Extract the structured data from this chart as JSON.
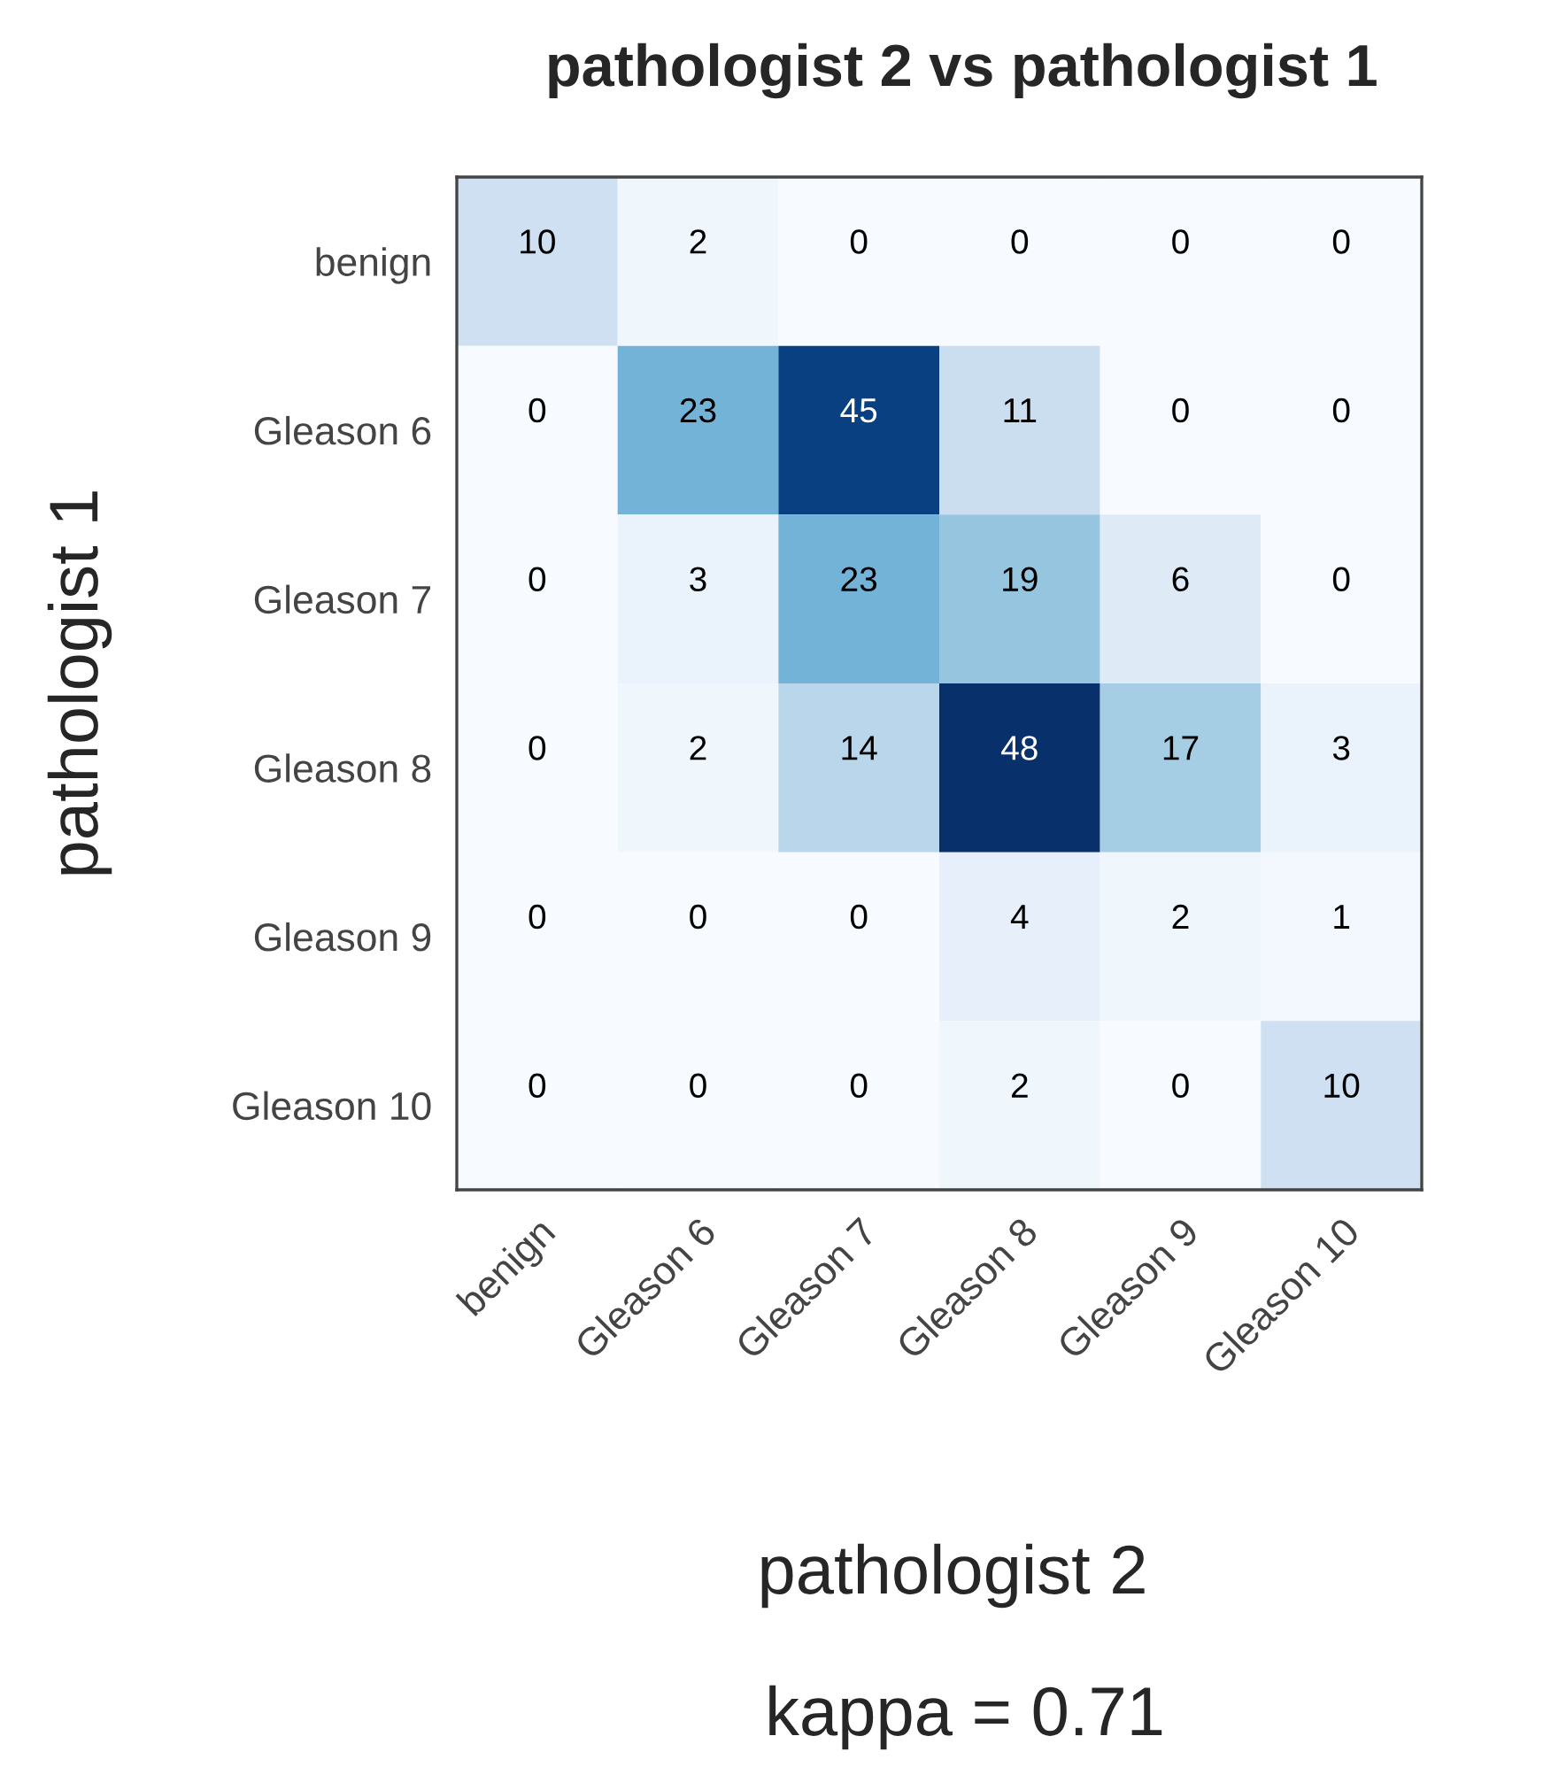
{
  "chart_data": {
    "type": "heatmap",
    "title": "pathologist 2 vs pathologist 1",
    "xlabel": "pathologist 2",
    "ylabel": "pathologist 1",
    "categories": [
      "benign",
      "Gleason 6",
      "Gleason 7",
      "Gleason 8",
      "Gleason 9",
      "Gleason 10"
    ],
    "y_categories": [
      "benign",
      "Gleason 6",
      "Gleason 7",
      "Gleason 8",
      "Gleason 9",
      "Gleason 10"
    ],
    "cells": [
      [
        10,
        2,
        0,
        0,
        0,
        0
      ],
      [
        0,
        23,
        45,
        11,
        0,
        0
      ],
      [
        0,
        3,
        23,
        19,
        6,
        0
      ],
      [
        0,
        2,
        14,
        48,
        17,
        3
      ],
      [
        0,
        0,
        0,
        4,
        2,
        1
      ],
      [
        0,
        0,
        0,
        2,
        0,
        10
      ]
    ],
    "data_labels": true,
    "annotations": [
      "kappa = 0.71"
    ]
  }
}
